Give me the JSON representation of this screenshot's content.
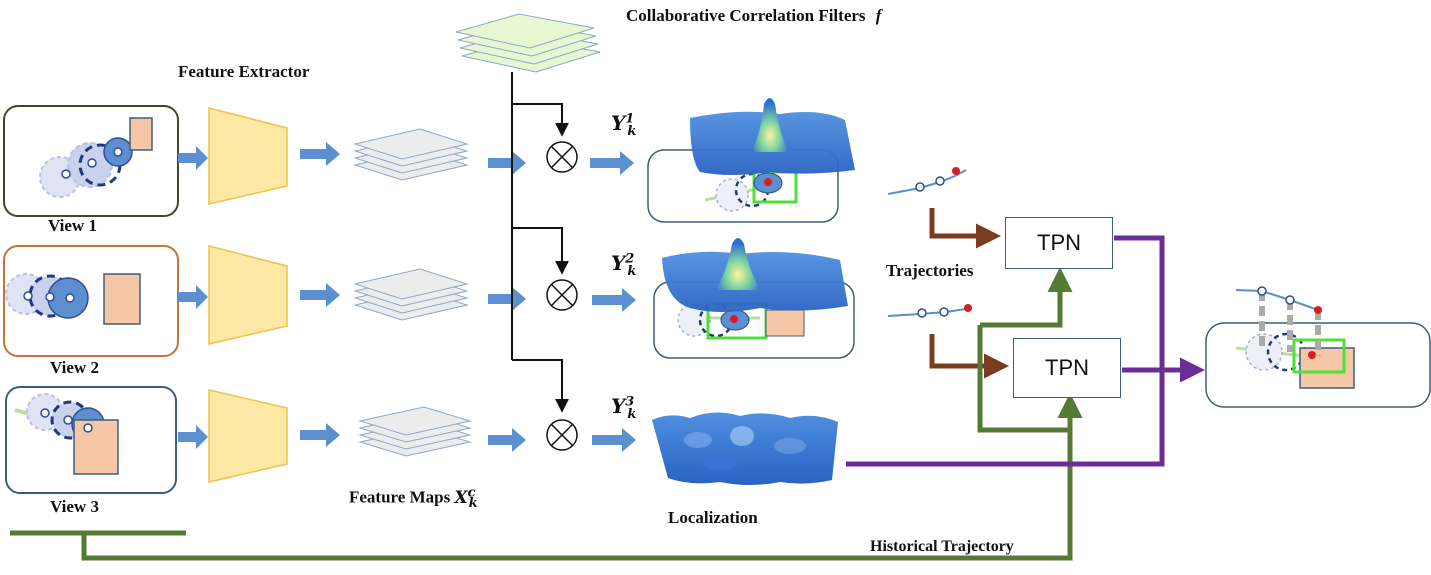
{
  "labels": {
    "filters": "Collaborative Correlation Filters",
    "filters_symbol": "f",
    "feature_extractor": "Feature Extractor",
    "view1": "View 1",
    "view2": "View 2",
    "view3": "View 3",
    "feature_maps": "Feature Maps",
    "localization": "Localization",
    "trajectories": "Trajectories",
    "historical_trajectory": "Historical Trajectory",
    "tpn": "TPN"
  },
  "math": {
    "Y": "Y",
    "k": "k",
    "X": "X",
    "c": "c",
    "sup1": "1",
    "sup2": "2",
    "sup3": "3"
  },
  "colors": {
    "arrow_blue": "#5b8fcf",
    "extractor_fill": "#fde8a6",
    "extractor_stroke": "#f0c24a",
    "filter_fill": "#e6f7d2",
    "map_fill": "#e4e4e4",
    "map_stroke": "#8fa7c6",
    "view1_border": "#3b4a2a",
    "view2_border": "#c8733a",
    "view3_border": "#3a5f7d",
    "box_fill": "#f6c7a6",
    "brown": "#7a3b1e",
    "green": "#557a33",
    "purple": "#6b2e94",
    "highlight_green": "#4ee033",
    "target_red": "#d42020"
  }
}
